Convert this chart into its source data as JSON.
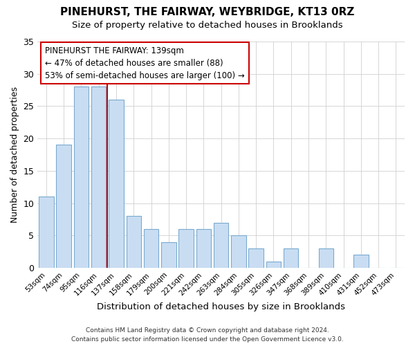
{
  "title": "PINEHURST, THE FAIRWAY, WEYBRIDGE, KT13 0RZ",
  "subtitle": "Size of property relative to detached houses in Brooklands",
  "xlabel": "Distribution of detached houses by size in Brooklands",
  "ylabel": "Number of detached properties",
  "bar_labels": [
    "53sqm",
    "74sqm",
    "95sqm",
    "116sqm",
    "137sqm",
    "158sqm",
    "179sqm",
    "200sqm",
    "221sqm",
    "242sqm",
    "263sqm",
    "284sqm",
    "305sqm",
    "326sqm",
    "347sqm",
    "368sqm",
    "389sqm",
    "410sqm",
    "431sqm",
    "452sqm",
    "473sqm"
  ],
  "bar_values": [
    11,
    19,
    28,
    28,
    26,
    8,
    6,
    4,
    6,
    6,
    7,
    5,
    3,
    1,
    3,
    0,
    3,
    0,
    2,
    0,
    0
  ],
  "bar_color": "#c9ddf2",
  "bar_edge_color": "#7aaad0",
  "vline_x_index": 3.5,
  "vline_color": "#cc0000",
  "ylim": [
    0,
    35
  ],
  "yticks": [
    0,
    5,
    10,
    15,
    20,
    25,
    30,
    35
  ],
  "annotation_title": "PINEHURST THE FAIRWAY: 139sqm",
  "annotation_line1": "← 47% of detached houses are smaller (88)",
  "annotation_line2": "53% of semi-detached houses are larger (100) →",
  "footer_line1": "Contains HM Land Registry data © Crown copyright and database right 2024.",
  "footer_line2": "Contains public sector information licensed under the Open Government Licence v3.0.",
  "background_color": "#ffffff",
  "grid_color": "#d0d0d0"
}
